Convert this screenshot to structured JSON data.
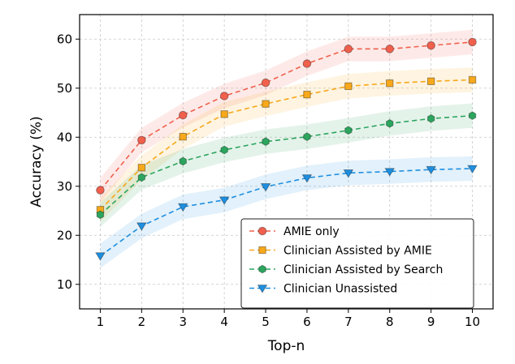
{
  "chart_data": {
    "type": "line",
    "title": "",
    "xlabel": "Top-n",
    "ylabel": "Accuracy (%)",
    "x": [
      1,
      2,
      3,
      4,
      5,
      6,
      7,
      8,
      9,
      10
    ],
    "xlim": [
      0.5,
      10.5
    ],
    "ylim": [
      5,
      65
    ],
    "xticks": [
      1,
      2,
      3,
      4,
      5,
      6,
      7,
      8,
      9,
      10
    ],
    "yticks": [
      10,
      20,
      30,
      40,
      50,
      60
    ],
    "grid": true,
    "legend_position": "lower-right",
    "series": [
      {
        "name": "AMIE only",
        "color": "#f0604d",
        "marker": "circle",
        "values": [
          29.2,
          39.4,
          44.5,
          48.4,
          51.1,
          55.0,
          58.0,
          58.0,
          58.7,
          59.4
        ],
        "band": [
          2.5,
          2.5,
          2.5,
          2.5,
          2.5,
          2.5,
          2.5,
          2.5,
          2.5,
          2.5
        ]
      },
      {
        "name": "Clinician Assisted by AMIE",
        "color": "#f7a81b",
        "marker": "square",
        "values": [
          25.2,
          33.8,
          40.1,
          44.7,
          46.8,
          48.7,
          50.4,
          51.0,
          51.4,
          51.7
        ],
        "band": [
          2.5,
          2.5,
          2.5,
          2.5,
          2.5,
          2.5,
          2.5,
          2.5,
          2.5,
          2.5
        ]
      },
      {
        "name": "Clinician Assisted by Search",
        "color": "#2ca55e",
        "marker": "hexagon",
        "values": [
          24.2,
          31.8,
          35.1,
          37.4,
          39.1,
          40.1,
          41.4,
          42.8,
          43.8,
          44.4
        ],
        "band": [
          2.5,
          2.5,
          2.5,
          2.5,
          2.5,
          2.5,
          2.5,
          2.5,
          2.5,
          2.5
        ]
      },
      {
        "name": "Clinician Unassisted",
        "color": "#1e8fe0",
        "marker": "triangle-down",
        "values": [
          15.8,
          21.9,
          25.8,
          27.2,
          29.9,
          31.7,
          32.7,
          33.0,
          33.4,
          33.6
        ],
        "band": [
          2.5,
          2.5,
          2.5,
          2.5,
          2.5,
          2.5,
          2.5,
          2.5,
          2.5,
          2.5
        ]
      }
    ]
  }
}
